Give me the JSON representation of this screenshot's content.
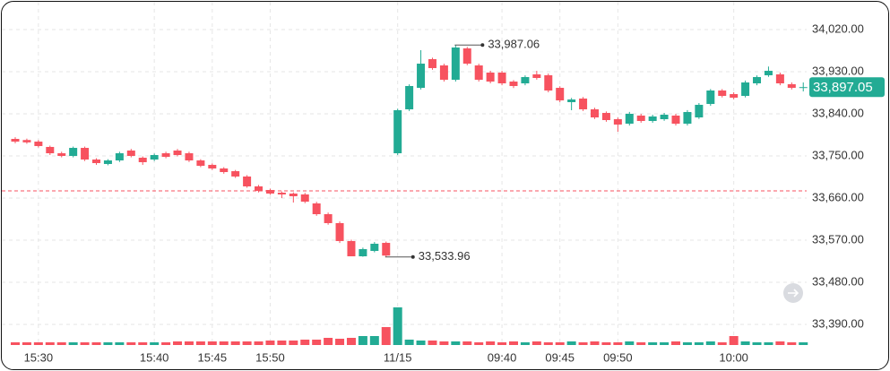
{
  "chart_data": {
    "type": "candlestick",
    "categories": [
      null,
      null,
      "15:30",
      null,
      null,
      null,
      null,
      null,
      null,
      null,
      null,
      null,
      "15:40",
      null,
      null,
      null,
      null,
      "15:45",
      null,
      null,
      null,
      null,
      "15:50",
      null,
      null,
      null,
      null,
      null,
      null,
      null,
      null,
      null,
      null,
      "11/15",
      null,
      null,
      null,
      null,
      null,
      null,
      null,
      null,
      "09:40",
      null,
      null,
      null,
      null,
      "09:45",
      null,
      null,
      null,
      null,
      "09:50",
      null,
      null,
      null,
      null,
      null,
      null,
      null,
      null,
      null,
      "10:00",
      null,
      null,
      null,
      null,
      null,
      null
    ],
    "open": [
      33786.4,
      33784,
      33780.6,
      33769.2,
      33755.7,
      33750.0,
      33767.2,
      33742.3,
      33732.8,
      33740.4,
      33761.5,
      33746.2,
      33742.3,
      33755.7,
      33761.5,
      33755.7,
      33740.4,
      33730.9,
      33723.2,
      33717.4,
      33706.0,
      33684.9,
      33677.2,
      33671.5,
      33669.6,
      33667.7,
      33648.5,
      33625.5,
      33606.4,
      33568.1,
      33535.5,
      33547.0,
      33564.2,
      33755.7,
      33849.6,
      33895.5,
      33956.8,
      33943.4,
      33912.8,
      33979.8,
      33943.4,
      33928.1,
      33928.1,
      33908.9,
      33905.1,
      33924.3,
      33922.4,
      33895.5,
      33864.9,
      33872.6,
      33849.6,
      33841.9,
      33828.5,
      33818.9,
      33836.2,
      33824.7,
      33828.5,
      33836.2,
      33818.9,
      33832.3,
      33861.1,
      33889.8,
      33882.1,
      33878.3,
      33905.1,
      33922.4,
      33924.3,
      33903.2,
      33895.5
    ],
    "high": [
      33790,
      33787,
      33784,
      33772,
      33759,
      33770,
      33770,
      33745,
      33743,
      33759,
      33765,
      33749,
      33755,
      33759,
      33765,
      33759,
      33743,
      33734,
      33726,
      33720,
      33709,
      33688,
      33680,
      33674,
      33672,
      33671,
      33652,
      33629,
      33610,
      33571,
      33554,
      33566,
      33567,
      33851,
      33903,
      33976.0,
      33960,
      33947,
      33987.06,
      33983,
      33947,
      33932,
      33932,
      33912,
      33922,
      33931.9,
      33926,
      33899,
      33874,
      33876,
      33853,
      33845,
      33832,
      33844,
      33840,
      33838,
      33842,
      33840,
      33848,
      33863,
      33893,
      33893,
      33886,
      33911,
      33922,
      33941,
      33928,
      33907,
      33907
    ],
    "low": [
      33777,
      33776,
      33768,
      33752,
      33747,
      33747,
      33739,
      33731,
      33730,
      33737,
      33747,
      33730.9,
      33739,
      33745,
      33749,
      33737,
      33726,
      33720,
      33712,
      33703,
      33682,
      33672,
      33667,
      33660.0,
      33650.4,
      33649,
      33622,
      33603,
      33564,
      33536,
      33534.5,
      33544,
      33533.96,
      33752,
      33846,
      33892,
      33934,
      33909,
      33909,
      33944,
      33909,
      33905,
      33901,
      33895,
      33901,
      33913,
      33886,
      33865,
      33847.7,
      33846,
      33829,
      33823,
      33801.7,
      33815,
      33821,
      33821,
      33825,
      33815,
      33815,
      33829,
      33857,
      33875,
      33871,
      33875,
      33901,
      33919,
      33901,
      33892,
      33887.9
    ],
    "close": [
      33780.6,
      33779,
      33771.1,
      33755.7,
      33750.0,
      33767.2,
      33742.3,
      33734.7,
      33740.4,
      33755.7,
      33750.0,
      33736.6,
      33751.9,
      33748.1,
      33751.9,
      33740.4,
      33728.9,
      33723.2,
      33715.5,
      33706.0,
      33684.9,
      33675.3,
      33669.6,
      33667.7,
      33663.8,
      33652.3,
      33625.5,
      33606.4,
      33568.1,
      33535.5,
      33550.8,
      33562.3,
      33537,
      33847.7,
      33899.4,
      33947.2,
      33937.7,
      33912.8,
      33981.7,
      33947.2,
      33912.8,
      33908.9,
      33905.1,
      33899.4,
      33918.5,
      33916.6,
      33889.8,
      33868.7,
      33870.6,
      33849.6,
      33832.3,
      33826.6,
      33817.0,
      33840.0,
      33824.7,
      33834.3,
      33838.1,
      33818.9,
      33843.8,
      33859.2,
      33889.8,
      33878.3,
      33874.5,
      33907.0,
      33918.5,
      33931.9,
      33905.1,
      33895.5,
      33897.05
    ],
    "volume": [
      3,
      3,
      3,
      3,
      3,
      3,
      3,
      3,
      3,
      3,
      3,
      3,
      3,
      3,
      4,
      4,
      4,
      4,
      4,
      4,
      4,
      4,
      5,
      5,
      5,
      6,
      6,
      8,
      7,
      8,
      10,
      10,
      20,
      42,
      6,
      5,
      5,
      4,
      4,
      4,
      3,
      4,
      3,
      4,
      3,
      4,
      3,
      3,
      4,
      3,
      4,
      3,
      3,
      4,
      3,
      3,
      3,
      4,
      3,
      3,
      4,
      3,
      10,
      4,
      3,
      3,
      4,
      3,
      3
    ],
    "up_color": "#22ab94",
    "down_color": "#f7525f",
    "ylim": [
      33344,
      34081.3
    ],
    "yticks": [
      {
        "value": 33390,
        "label": "33,390.00"
      },
      {
        "value": 33480,
        "label": "33,480.00"
      },
      {
        "value": 33570,
        "label": "33,570.00"
      },
      {
        "value": 33660,
        "label": "33,660.00"
      },
      {
        "value": 33750,
        "label": "33,750.00"
      },
      {
        "value": 33840,
        "label": "33,840.00"
      },
      {
        "value": 33930,
        "label": "33,930.00"
      },
      {
        "value": 34020,
        "label": "34,020.00"
      }
    ],
    "grid": true,
    "reference_line": 33675.3,
    "annotations": [
      {
        "value": 33987.06,
        "label": "33,987.06",
        "kind": "high"
      },
      {
        "value": 33533.96,
        "label": "33,533.96",
        "kind": "low"
      }
    ],
    "last_price": {
      "value": 33897.05,
      "label": "33,897.05"
    }
  }
}
